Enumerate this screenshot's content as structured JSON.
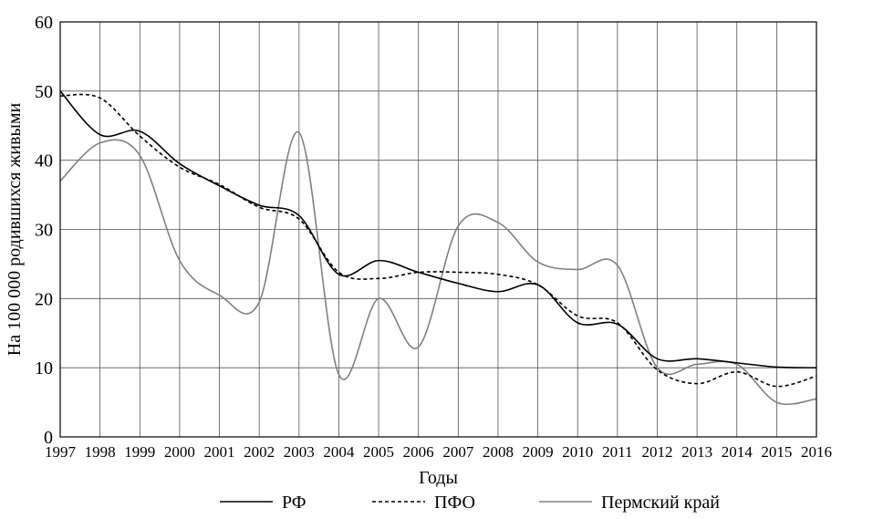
{
  "chart_data": {
    "type": "line",
    "title": "",
    "xlabel": "Годы",
    "ylabel": "На 100 000 родившихся живыми",
    "ylim": [
      0,
      60
    ],
    "yticks": [
      0,
      10,
      20,
      30,
      40,
      50,
      60
    ],
    "x": [
      "1997",
      "1998",
      "1999",
      "2000",
      "2001",
      "2002",
      "2003",
      "2004",
      "2005",
      "2006",
      "2007",
      "2008",
      "2009",
      "2010",
      "2011",
      "2012",
      "2013",
      "2014",
      "2015",
      "2016"
    ],
    "grid": true,
    "legend_position": "bottom",
    "series": [
      {
        "name": "РФ",
        "color": "#000000",
        "dash": "solid",
        "values": [
          50,
          43.7,
          44.2,
          39.5,
          36.3,
          33.5,
          32,
          23.5,
          25.5,
          23.8,
          22.2,
          21,
          22,
          16.5,
          16.3,
          11.3,
          11.3,
          10.7,
          10.1,
          10
        ]
      },
      {
        "name": "ПФО",
        "color": "#000000",
        "dash": "dashed",
        "values": [
          49.3,
          49,
          43.5,
          39,
          36.5,
          33.2,
          31.5,
          23.8,
          22.9,
          23.8,
          23.8,
          23.5,
          22,
          17.5,
          16.5,
          9.7,
          7.7,
          9.4,
          7.3,
          8.8
        ]
      },
      {
        "name": "Пермский край",
        "color": "#808080",
        "dash": "solid",
        "values": [
          37,
          42.5,
          40.7,
          25.5,
          20.5,
          19.5,
          44,
          9,
          20,
          13,
          30.5,
          31,
          25.3,
          24.2,
          24.8,
          10,
          10.5,
          10.5,
          5,
          5.5
        ]
      }
    ]
  }
}
